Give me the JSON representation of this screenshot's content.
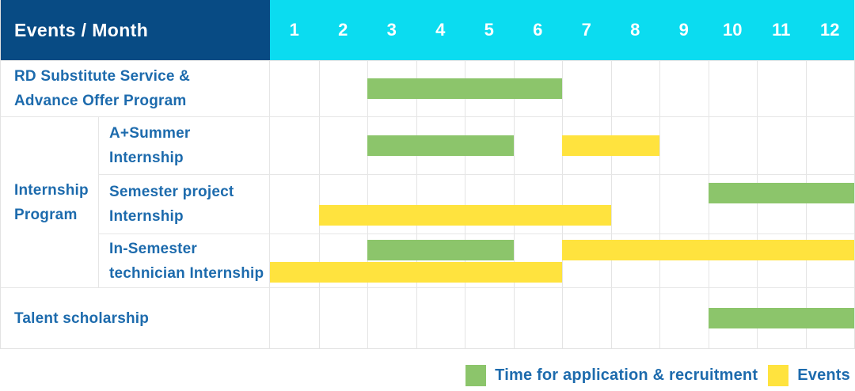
{
  "table": {
    "corner_label": "Events / Month",
    "months": [
      "1",
      "2",
      "3",
      "4",
      "5",
      "6",
      "7",
      "8",
      "9",
      "10",
      "11",
      "12"
    ]
  },
  "colors": {
    "header_navy": "#084b84",
    "header_cyan": "#0bdcf0",
    "application_green": "#8cc56b",
    "event_yellow": "#ffe33e",
    "label_blue": "#1d6bad",
    "grid_line": "#e4e4e4"
  },
  "legend": {
    "items": [
      {
        "kind": "application",
        "color": "#8cc56b",
        "label": "Time for application & recruitment"
      },
      {
        "kind": "event",
        "color": "#ffe33e",
        "label": "Events"
      }
    ]
  },
  "chart_data": {
    "type": "gantt",
    "x_unit": "month",
    "x_range": [
      1,
      12
    ],
    "kind_colors": {
      "application": "#8cc56b",
      "event": "#ffe33e"
    },
    "kind_labels": {
      "application": "Time for application & recruitment",
      "event": "Events"
    },
    "group_label_lines": [
      "Internship",
      "Program"
    ],
    "rows": [
      {
        "group": null,
        "label": "RD Substitute Service & Advance Offer Program",
        "label_lines": [
          "RD Substitute Service &",
          "Advance Offer Program"
        ],
        "bars": [
          {
            "kind": "application",
            "start_month": 3,
            "end_month": 6,
            "lane": "center"
          }
        ]
      },
      {
        "group": "Internship Program",
        "label": "A+Summer Internship",
        "label_lines": [
          "A+Summer",
          "Internship"
        ],
        "bars": [
          {
            "kind": "application",
            "start_month": 3,
            "end_month": 5,
            "lane": "center"
          },
          {
            "kind": "event",
            "start_month": 7,
            "end_month": 8,
            "lane": "center"
          }
        ]
      },
      {
        "group": "Internship Program",
        "label": "Semester project Internship",
        "label_lines": [
          "Semester project",
          "Internship"
        ],
        "bars": [
          {
            "kind": "application",
            "start_month": 10,
            "end_month": 12,
            "lane": "top"
          },
          {
            "kind": "event",
            "start_month": 2,
            "end_month": 7,
            "lane": "bottom"
          }
        ]
      },
      {
        "group": "Internship Program",
        "label": "In-Semester technician Internship",
        "label_lines": [
          "In-Semester",
          "technician Internship"
        ],
        "bars": [
          {
            "kind": "application",
            "start_month": 3,
            "end_month": 5,
            "lane": "top"
          },
          {
            "kind": "event",
            "start_month": 7,
            "end_month": 12,
            "lane": "top"
          },
          {
            "kind": "event",
            "start_month": 1,
            "end_month": 6,
            "lane": "bottom"
          }
        ]
      },
      {
        "group": null,
        "label": "Talent scholarship",
        "label_lines": [
          "Talent scholarship"
        ],
        "bars": [
          {
            "kind": "application",
            "start_month": 10,
            "end_month": 12,
            "lane": "center"
          }
        ]
      }
    ]
  }
}
